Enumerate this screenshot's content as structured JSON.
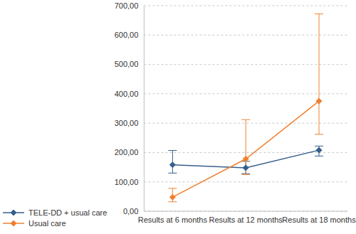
{
  "chart_data": {
    "type": "line",
    "categories": [
      "Results at 6 months",
      "Results at 12 months",
      "Results at 18 months"
    ],
    "series": [
      {
        "name": "TELE-DD + usual care",
        "color": "#355f8d",
        "marker": "diamond",
        "values": [
          158,
          148,
          208
        ],
        "errors": [
          [
            130,
            207
          ],
          [
            128,
            170
          ],
          [
            188,
            222
          ]
        ]
      },
      {
        "name": "Usual care",
        "color": "#f08030",
        "marker": "diamond",
        "values": [
          48,
          178,
          375
        ],
        "errors": [
          [
            32,
            78
          ],
          [
            125,
            312
          ],
          [
            262,
            672
          ]
        ]
      }
    ],
    "ylim": [
      0,
      700
    ],
    "yticks": [
      {
        "value": 0,
        "label": "0,00"
      },
      {
        "value": 100,
        "label": "100,00"
      },
      {
        "value": 200,
        "label": "200,00"
      },
      {
        "value": 300,
        "label": "300,00"
      },
      {
        "value": 400,
        "label": "400,00"
      },
      {
        "value": 500,
        "label": "500,00"
      },
      {
        "value": 600,
        "label": "600,00"
      },
      {
        "value": 700,
        "label": "700,00"
      }
    ],
    "grid": true,
    "legend": "bottom-left"
  }
}
